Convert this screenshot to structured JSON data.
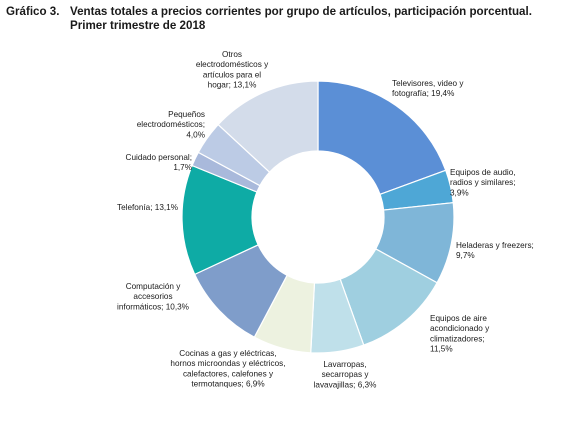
{
  "figure_number": "Gráfico 3.",
  "title_line1": "Ventas totales a precios corrientes por grupo de artículos, participación porcentual.",
  "title_line2": "Primer trimestre de 2018",
  "chart_data": {
    "type": "pie",
    "donut": true,
    "unit": "%",
    "title": "Ventas totales a precios corrientes por grupo de artículos, participación porcentual. Primer trimestre de 2018",
    "legend": "none",
    "series": [
      {
        "name": "Televisores, video y fotografía",
        "value": 19.4,
        "color": "#5b8fd6",
        "label_lines": [
          "Televisores, video y",
          "fotografía; 19,4%"
        ]
      },
      {
        "name": "Equipos de audio, radios y similares",
        "value": 3.9,
        "color": "#4ea7d6",
        "label_lines": [
          "Equipos de audio,",
          "radios y similares;",
          "3,9%"
        ]
      },
      {
        "name": "Heladeras y freezers",
        "value": 9.7,
        "color": "#7fb6d8",
        "label_lines": [
          "Heladeras y freezers;",
          "9,7%"
        ]
      },
      {
        "name": "Equipos de aire acondicionado y climatizadores",
        "value": 11.5,
        "color": "#9fcfe0",
        "label_lines": [
          "Equipos de aire",
          "acondicionado y",
          "climatizadores;",
          "11,5%"
        ]
      },
      {
        "name": "Lavarropas, secarropas y lavavajillas",
        "value": 6.3,
        "color": "#bfe0ea",
        "label_lines": [
          "Lavarropas,",
          "secarropas y",
          "lavavajillas; 6,3%"
        ]
      },
      {
        "name": "Cocinas a gas y eléctricas, hornos microondas y eléctricos, calefactores, calefones y termotanques",
        "value": 6.9,
        "color": "#edf2e0",
        "label_lines": [
          "Cocinas a gas y eléctricas,",
          "hornos microondas y eléctricos,",
          "calefactores, calefones y",
          "termotanques; 6,9%"
        ]
      },
      {
        "name": "Computación y accesorios informáticos",
        "value": 10.3,
        "color": "#7f9dca",
        "label_lines": [
          "Computación  y",
          "accesorios",
          "informáticos; 10,3%"
        ]
      },
      {
        "name": "Telefonía",
        "value": 13.1,
        "color": "#0eaba5",
        "label_lines": [
          "Telefonía; 13,1%"
        ]
      },
      {
        "name": "Cuidado personal",
        "value": 1.7,
        "color": "#a9b9db",
        "label_lines": [
          "Cuidado personal;",
          "1,7%"
        ]
      },
      {
        "name": "Pequeños electrodomésticos",
        "value": 4.0,
        "color": "#bccbe5",
        "label_lines": [
          "Pequeños",
          "electrodomésticos;",
          "4,0%"
        ]
      },
      {
        "name": "Otros electrodomésticos y artículos para el hogar",
        "value": 13.1,
        "color": "#d3dcea",
        "label_lines": [
          "Otros",
          "electrodomésticos y",
          "artículos para el",
          "hogar; 13,1%"
        ]
      }
    ]
  }
}
